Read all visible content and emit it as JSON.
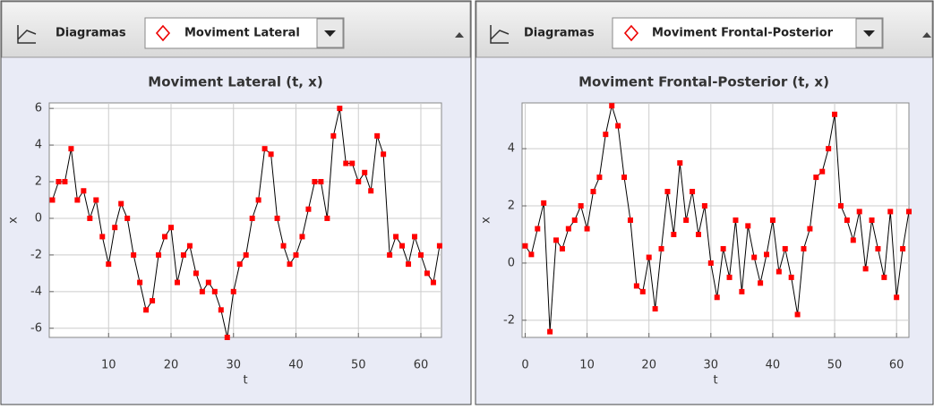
{
  "panels": [
    {
      "label": "Diagramas",
      "selector": "Moviment Lateral"
    },
    {
      "label": "Diagramas",
      "selector": "Moviment Frontal-Posterior"
    }
  ],
  "chart_data": [
    {
      "type": "line",
      "title": "Moviment Lateral (t, x)",
      "x_label": "t",
      "y_label": "x",
      "x": [
        1,
        2,
        3,
        4,
        5,
        6,
        7,
        8,
        9,
        10,
        11,
        12,
        13,
        14,
        15,
        16,
        17,
        18,
        19,
        20,
        21,
        22,
        23,
        24,
        25,
        26,
        27,
        28,
        29,
        30,
        31,
        32,
        33,
        34,
        35,
        36,
        37,
        38,
        39,
        40,
        41,
        42,
        43,
        44,
        45,
        46,
        47,
        48,
        49,
        50,
        51,
        52,
        53,
        54,
        55,
        56,
        57,
        58,
        59,
        60,
        61,
        62,
        63
      ],
      "series": [
        {
          "color": "#ff0000",
          "line_color": "#000000",
          "values": [
            1,
            2,
            2,
            3.8,
            1,
            1.5,
            0,
            1,
            -1,
            -2.5,
            -0.5,
            0.8,
            0,
            -2,
            -3.5,
            -5,
            -4.5,
            -2,
            -1,
            -0.5,
            -3.5,
            -2,
            -1.5,
            -3,
            -4,
            -3.5,
            -4,
            -5,
            -6.5,
            -4,
            -2.5,
            -2,
            0,
            1,
            3.8,
            3.5,
            0,
            -1.5,
            -2.5,
            -2,
            -1,
            0.5,
            2,
            2,
            0,
            4.5,
            6,
            3,
            3,
            2,
            2.5,
            1.5,
            4.5,
            3.5,
            -2,
            -1,
            -1.5,
            -2.5,
            -1,
            -2,
            -3,
            -3.5,
            -1.5
          ]
        }
      ],
      "xlim": [
        0.5,
        63.3
      ],
      "xticks": [
        10,
        20,
        30,
        40,
        50,
        60
      ],
      "ylim": [
        -6.5,
        6.3
      ],
      "yticks": [
        -6,
        -4,
        -2,
        0,
        2,
        4,
        6
      ],
      "grid": true
    },
    {
      "type": "line",
      "title": "Moviment Frontal-Posterior (t, x)",
      "x_label": "t",
      "y_label": "x",
      "x": [
        0,
        1,
        2,
        3,
        4,
        5,
        6,
        7,
        8,
        9,
        10,
        11,
        12,
        13,
        14,
        15,
        16,
        17,
        18,
        19,
        20,
        21,
        22,
        23,
        24,
        25,
        26,
        27,
        28,
        29,
        30,
        31,
        32,
        33,
        34,
        35,
        36,
        37,
        38,
        39,
        40,
        41,
        42,
        43,
        44,
        45,
        46,
        47,
        48,
        49,
        50,
        51,
        52,
        53,
        54,
        55,
        56,
        57,
        58,
        59,
        60,
        61,
        62
      ],
      "series": [
        {
          "color": "#ff0000",
          "line_color": "#000000",
          "values": [
            0.6,
            0.3,
            1.2,
            2.1,
            -2.4,
            0.8,
            0.5,
            1.2,
            1.5,
            2,
            1.2,
            2.5,
            3,
            4.5,
            5.5,
            4.8,
            3,
            1.5,
            -0.8,
            -1,
            0.2,
            -1.6,
            0.5,
            2.5,
            1,
            3.5,
            1.5,
            2.5,
            1,
            2,
            0,
            -1.2,
            0.5,
            -0.5,
            1.5,
            -1,
            1.3,
            0.2,
            -0.7,
            0.3,
            1.5,
            -0.3,
            0.5,
            -0.5,
            -1.8,
            0.5,
            1.2,
            3,
            3.2,
            4,
            5.2,
            2,
            1.5,
            0.8,
            1.8,
            -0.2,
            1.5,
            0.5,
            -0.5,
            1.8,
            -1.2,
            0.5,
            1.8
          ]
        }
      ],
      "xlim": [
        -0.5,
        62
      ],
      "xticks": [
        0,
        10,
        20,
        30,
        40,
        50,
        60
      ],
      "ylim": [
        -2.6,
        5.6
      ],
      "yticks": [
        -2,
        0,
        2,
        4
      ],
      "grid": true
    }
  ]
}
